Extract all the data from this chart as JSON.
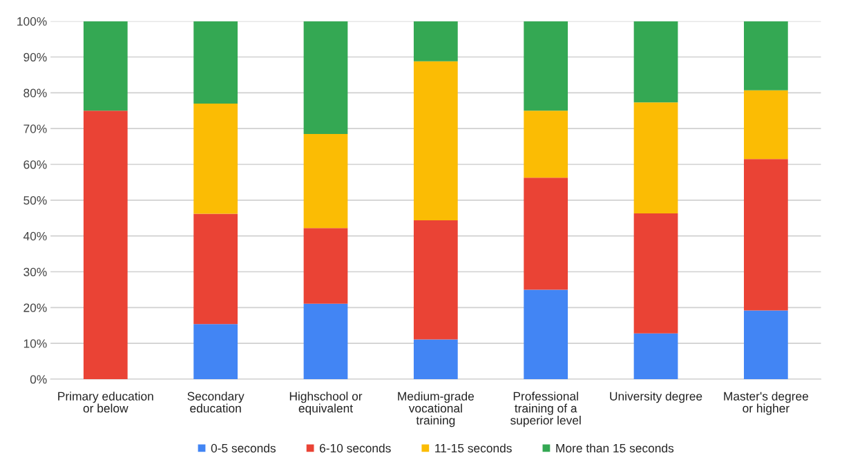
{
  "chart_data": {
    "type": "bar",
    "stacked": true,
    "categories": [
      "Primary education or below",
      "Secondary education",
      "Highschool or equivalent",
      "Medium-grade vocational training",
      "Professional training of a superior level",
      "University degree",
      "Master's degree or higher"
    ],
    "series": [
      {
        "name": "0-5 seconds",
        "color": "#4285f4",
        "values": [
          0,
          15.4,
          21.1,
          11.1,
          25.0,
          12.8,
          19.2
        ]
      },
      {
        "name": "6-10 seconds",
        "color": "#ea4335",
        "values": [
          75.0,
          30.8,
          21.1,
          33.3,
          31.3,
          33.5,
          42.3
        ]
      },
      {
        "name": "11-15 seconds",
        "color": "#fbbc04",
        "values": [
          0,
          30.8,
          26.3,
          44.4,
          18.7,
          31.0,
          19.2
        ]
      },
      {
        "name": "More than 15 seconds",
        "color": "#34a853",
        "values": [
          25.0,
          23.0,
          31.5,
          11.2,
          25.0,
          22.7,
          19.3
        ]
      }
    ],
    "ylim": [
      0,
      100
    ],
    "yticks": [
      {
        "value": 0,
        "label": "0%"
      },
      {
        "value": 10,
        "label": "10%"
      },
      {
        "value": 20,
        "label": "20%"
      },
      {
        "value": 30,
        "label": "30%"
      },
      {
        "value": 40,
        "label": "40%"
      },
      {
        "value": 50,
        "label": "50%"
      },
      {
        "value": 60,
        "label": "60%"
      },
      {
        "value": 70,
        "label": "70%"
      },
      {
        "value": 80,
        "label": "80%"
      },
      {
        "value": 90,
        "label": "90%"
      },
      {
        "value": 100,
        "label": "100%"
      }
    ],
    "grid": "y",
    "legend": "bottom"
  }
}
